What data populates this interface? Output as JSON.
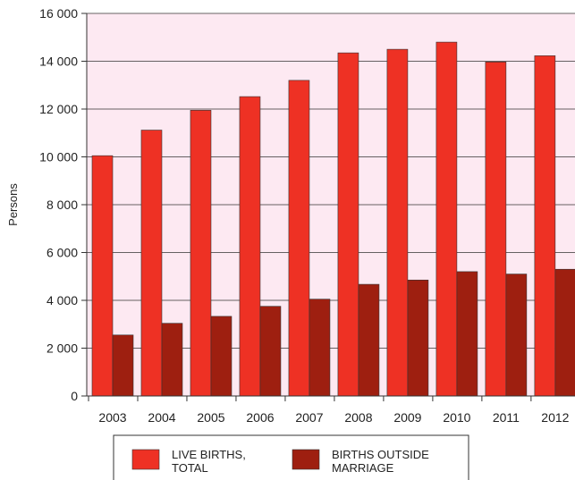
{
  "chart_data": {
    "type": "bar",
    "title": "",
    "xlabel": "",
    "ylabel": "Persons",
    "ylim": [
      0,
      16000
    ],
    "yticks": [
      0,
      2000,
      4000,
      6000,
      8000,
      10000,
      12000,
      14000,
      16000
    ],
    "ytick_labels": [
      "0",
      "2 000",
      "4 000",
      "6 000",
      "8 000",
      "10 000",
      "12 000",
      "14 000",
      "16 000"
    ],
    "categories": [
      "2003",
      "2004",
      "2005",
      "2006",
      "2007",
      "2008",
      "2009",
      "2010",
      "2011",
      "2012"
    ],
    "grid": true,
    "legend_position": "bottom",
    "plot_background": "#fde9f2",
    "series": [
      {
        "name": "LIVE BIRTHS, TOTAL",
        "legend_lines": [
          "LIVE BIRTHS,",
          "TOTAL"
        ],
        "color": "#ee3124",
        "values": [
          10050,
          11120,
          11950,
          12520,
          13200,
          14350,
          14500,
          14800,
          13970,
          14230
        ]
      },
      {
        "name": "BIRTHS OUTSIDE MARRIAGE",
        "legend_lines": [
          "BIRTHS OUTSIDE",
          "MARRIAGE"
        ],
        "color": "#9e1f10",
        "values": [
          2550,
          3040,
          3330,
          3750,
          4050,
          4670,
          4850,
          5200,
          5100,
          5300
        ]
      }
    ]
  }
}
